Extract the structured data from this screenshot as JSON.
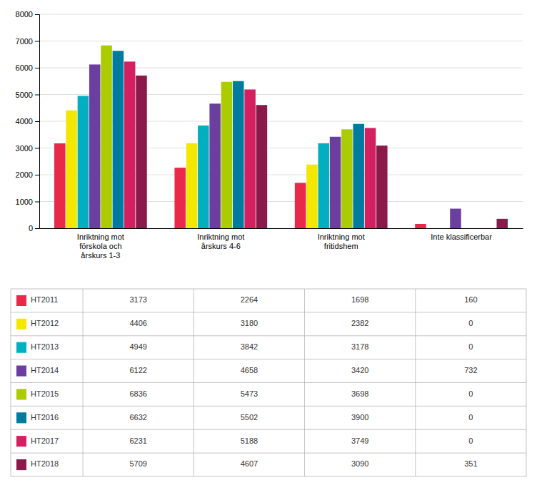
{
  "chart_data": {
    "type": "bar",
    "categories": [
      "Inriktning mot\nförskola och\nårskurs 1-3",
      "Inriktning mot\nårskurs 4-6",
      "Inriktning mot\nfritidshem",
      "Inte klassificerbar"
    ],
    "series": [
      {
        "name": "HT2011",
        "color": "#E8294A",
        "values": [
          3173,
          2264,
          1698,
          160
        ]
      },
      {
        "name": "HT2012",
        "color": "#F5E800",
        "values": [
          4406,
          3180,
          2382,
          0
        ]
      },
      {
        "name": "HT2013",
        "color": "#00B0C0",
        "values": [
          4949,
          3842,
          3178,
          0
        ]
      },
      {
        "name": "HT2014",
        "color": "#6B3FA0",
        "values": [
          6122,
          4658,
          3420,
          732
        ]
      },
      {
        "name": "HT2015",
        "color": "#AACC00",
        "values": [
          6836,
          5473,
          3698,
          0
        ]
      },
      {
        "name": "HT2016",
        "color": "#007BA0",
        "values": [
          6632,
          5502,
          3900,
          0
        ]
      },
      {
        "name": "HT2017",
        "color": "#D42060",
        "values": [
          6231,
          5188,
          3749,
          0
        ]
      },
      {
        "name": "HT2018",
        "color": "#8B1A4A",
        "values": [
          5709,
          4607,
          3090,
          351
        ]
      }
    ],
    "ylim": [
      0,
      8000
    ],
    "yticks": [
      0,
      1000,
      2000,
      3000,
      4000,
      5000,
      6000,
      7000,
      8000
    ],
    "grid": true,
    "legend": "bottom"
  }
}
